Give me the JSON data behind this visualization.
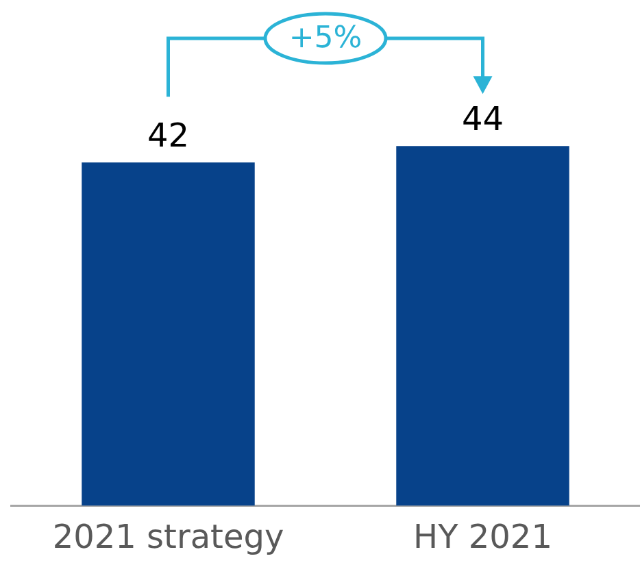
{
  "chart_data": {
    "type": "bar",
    "categories": [
      "2021 strategy",
      "HY 2021"
    ],
    "values": [
      42,
      44
    ],
    "color": "#07428a",
    "data_labels": true,
    "grid": false,
    "legend": false,
    "annotations": [
      "+5%"
    ]
  }
}
